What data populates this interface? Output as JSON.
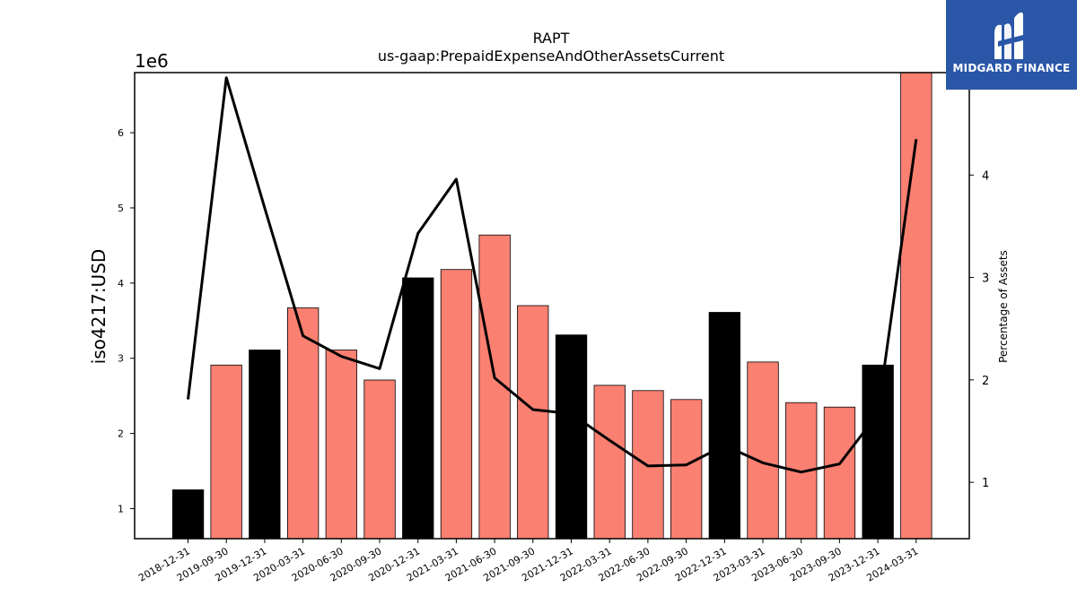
{
  "chart_data": {
    "type": "bar",
    "title": "RAPT",
    "subtitle": "us-gaap:PrepaidExpenseAndOtherAssetsCurrent",
    "ylabel": "iso4217:USD",
    "y_multiplier": "1e6",
    "y2label": "Percentage of Assets",
    "ylim": [
      0.6,
      6.8
    ],
    "y2lim": [
      0.45,
      5.0
    ],
    "y_ticks": [
      1,
      2,
      3,
      4,
      5,
      6
    ],
    "y2_ticks": [
      1,
      2,
      3,
      4
    ],
    "categories": [
      "2018-12-31",
      "2019-09-30",
      "2019-12-31",
      "2020-03-31",
      "2020-06-30",
      "2020-09-30",
      "2020-12-31",
      "2021-03-31",
      "2021-06-30",
      "2021-09-30",
      "2021-12-31",
      "2022-03-31",
      "2022-06-30",
      "2022-09-30",
      "2022-12-31",
      "2023-03-31",
      "2023-06-30",
      "2023-09-30",
      "2023-12-31",
      "2024-03-31"
    ],
    "series": [
      {
        "type": "bar",
        "axis": "left",
        "values": [
          1.25,
          2.91,
          3.11,
          3.67,
          3.11,
          2.71,
          4.07,
          4.18,
          4.64,
          3.7,
          3.31,
          2.64,
          2.57,
          2.45,
          3.61,
          2.95,
          2.41,
          2.35,
          2.91,
          6.8
        ]
      },
      {
        "type": "line",
        "axis": "right",
        "values": [
          1.81,
          4.95,
          3.68,
          2.43,
          2.23,
          2.11,
          3.43,
          3.96,
          2.02,
          1.71,
          1.67,
          1.41,
          1.16,
          1.17,
          1.36,
          1.19,
          1.1,
          1.18,
          1.67,
          4.35
        ]
      }
    ],
    "bar_colors": [
      "#000000",
      "#fa8072",
      "#000000",
      "#fa8072",
      "#fa8072",
      "#fa8072",
      "#000000",
      "#fa8072",
      "#fa8072",
      "#fa8072",
      "#000000",
      "#fa8072",
      "#fa8072",
      "#fa8072",
      "#000000",
      "#fa8072",
      "#fa8072",
      "#fa8072",
      "#000000",
      "#fa8072"
    ],
    "line_color": "#000000",
    "grid": false,
    "legend": "none"
  },
  "logo": {
    "text": "MIDGARD FINANCE",
    "bg": "#2a56a8"
  }
}
